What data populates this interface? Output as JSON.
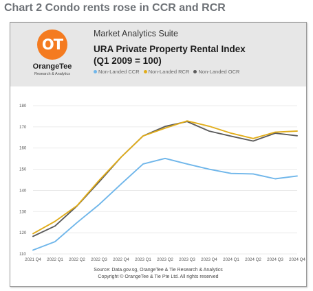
{
  "page_heading": "Chart 2 Condo rents rose in CCR and RCR",
  "card": {
    "logo_letters": "OT",
    "brand_name": "OrangeTee",
    "brand_sub": "Research & Analytics",
    "suite": "Market Analytics Suite",
    "title_line1": "URA Private Property Rental Index",
    "title_line2": "(Q1 2009 = 100)",
    "source_line1": "Source: Data.gov.sg, OrangeTee & Tie Research & Analytics",
    "source_line2": "Copyright © OrangeTee & Tie Pte Ltd. All rights reserved"
  },
  "chart_data": {
    "type": "line",
    "title": "URA Private Property Rental Index (Q1 2009 = 100)",
    "categories": [
      "2021 Q4",
      "2022 Q1",
      "2022 Q2",
      "2022 Q3",
      "2022 Q4",
      "2023 Q1",
      "2023 Q2",
      "2023 Q3",
      "2023 Q4",
      "2024 Q1",
      "2024 Q2",
      "2024 Q3",
      "2024 Q4"
    ],
    "ylim": [
      110,
      180
    ],
    "yticks": [
      110,
      120,
      130,
      140,
      150,
      160,
      170,
      180
    ],
    "grid": true,
    "legend_position": "top",
    "series": [
      {
        "name": "Non-Landed CCR",
        "color": "#6fb6ea",
        "values": [
          111.8,
          115.8,
          124.8,
          133.3,
          143.0,
          152.5,
          155.1,
          152.5,
          150.0,
          148.0,
          147.8,
          145.5,
          146.8
        ]
      },
      {
        "name": "Non-Landed RCR",
        "color": "#e1ad1b",
        "values": [
          119.6,
          125.4,
          132.8,
          144.7,
          155.7,
          165.7,
          169.4,
          172.8,
          170.3,
          167.0,
          164.5,
          167.5,
          168.0
        ]
      },
      {
        "name": "Non-Landed OCR",
        "color": "#5b5b5b",
        "values": [
          118.3,
          123.2,
          132.7,
          144.0,
          155.7,
          165.7,
          170.2,
          172.5,
          168.0,
          165.6,
          163.3,
          167.0,
          165.8
        ]
      }
    ]
  }
}
